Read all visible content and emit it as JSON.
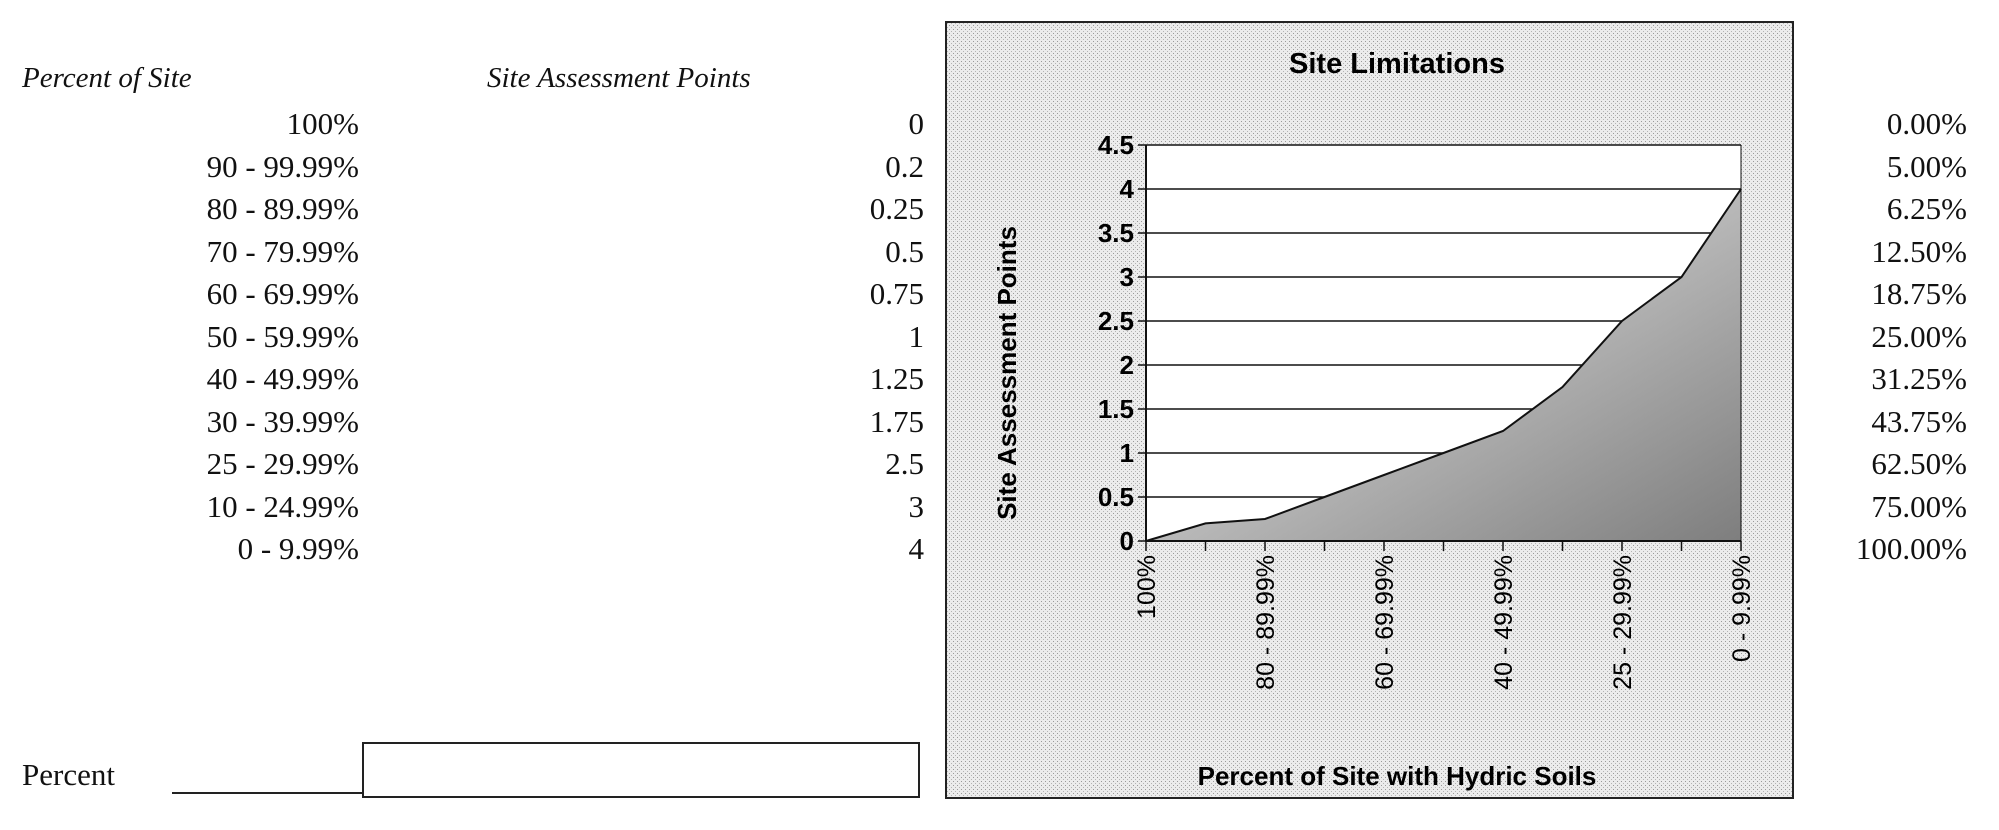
{
  "table": {
    "header_percent": "Percent of Site",
    "header_points": "Site Assessment Points",
    "rows": [
      {
        "percent": "100%",
        "points": "0",
        "share": "0.00%"
      },
      {
        "percent": "90 - 99.99%",
        "points": "0.2",
        "share": "5.00%"
      },
      {
        "percent": "80 - 89.99%",
        "points": "0.25",
        "share": "6.25%"
      },
      {
        "percent": "70 - 79.99%",
        "points": "0.5",
        "share": "12.50%"
      },
      {
        "percent": "60 - 69.99%",
        "points": "0.75",
        "share": "18.75%"
      },
      {
        "percent": "50 - 59.99%",
        "points": "1",
        "share": "25.00%"
      },
      {
        "percent": "40 - 49.99%",
        "points": "1.25",
        "share": "31.25%"
      },
      {
        "percent": "30 - 39.99%",
        "points": "1.75",
        "share": "43.75%"
      },
      {
        "percent": "25 - 29.99%",
        "points": "2.5",
        "share": "62.50%"
      },
      {
        "percent": "10 - 24.99%",
        "points": "3",
        "share": "75.00%"
      },
      {
        "percent": "0 - 9.99%",
        "points": "4",
        "share": "100.00%"
      }
    ]
  },
  "input": {
    "label": "Percent",
    "value": ""
  },
  "chart_data": {
    "type": "area",
    "title": "Site Limitations",
    "xlabel": "Percent of Site with Hydric Soils",
    "ylabel": "Site Assessment Points",
    "categories": [
      "100%",
      "90 - 99.99%",
      "80 - 89.99%",
      "70 - 79.99%",
      "60 - 69.99%",
      "50 - 59.99%",
      "40 - 49.99%",
      "30 - 39.99%",
      "25 - 29.99%",
      "10 - 24.99%",
      "0 - 9.99%"
    ],
    "x_tick_labels": [
      "100%",
      "80 - 89.99%",
      "60 - 69.99%",
      "40 - 49.99%",
      "25 - 29.99%",
      "0 - 9.99%"
    ],
    "values": [
      0,
      0.2,
      0.25,
      0.5,
      0.75,
      1,
      1.25,
      1.75,
      2.5,
      3,
      4
    ],
    "ylim": [
      0,
      4.5
    ],
    "yticks": [
      "0",
      "0.5",
      "1",
      "1.5",
      "2",
      "2.5",
      "3",
      "3.5",
      "4",
      "4.5"
    ],
    "grid": true,
    "colors": {
      "area_dark": "#8a8a8a",
      "area_light": "#f4f4f4",
      "frame_bg": "#e4e4e4"
    }
  }
}
